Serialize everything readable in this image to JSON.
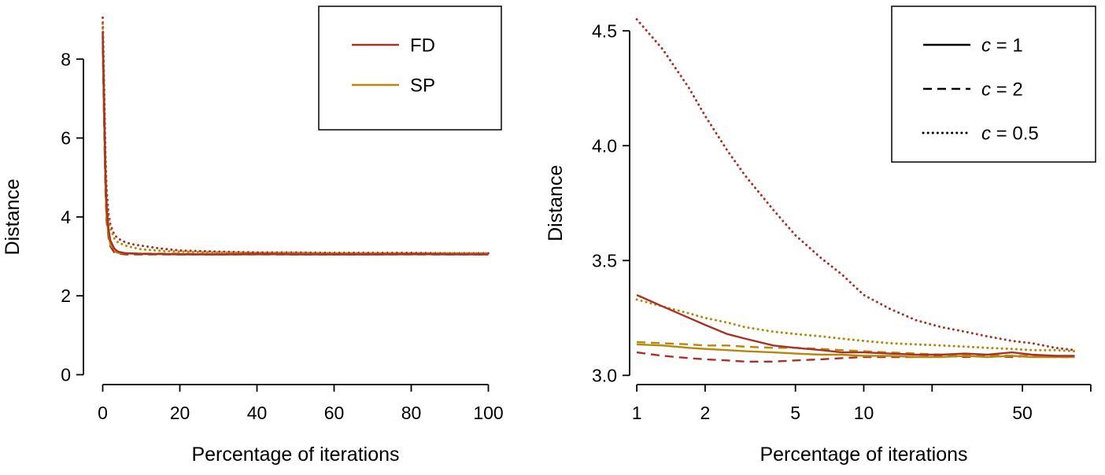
{
  "colors": {
    "axis": "#000000",
    "fd": "#a93226",
    "sp": "#b8860b",
    "legend_line_neutral": "#000000",
    "background": "#ffffff"
  },
  "chart_data": [
    {
      "panel_name": "left-panel",
      "type": "line",
      "title": "",
      "xlabel": "Percentage of iterations",
      "ylabel": "Distance",
      "xscale": "linear",
      "grid": false,
      "legend_position": "top-right",
      "xlim": [
        -5,
        105
      ],
      "ylim": [
        -0.25,
        9.3
      ],
      "xticks": [
        {
          "v": 0,
          "label": "0"
        },
        {
          "v": 20,
          "label": "20"
        },
        {
          "v": 40,
          "label": "40"
        },
        {
          "v": 60,
          "label": "60"
        },
        {
          "v": 80,
          "label": "80"
        },
        {
          "v": 100,
          "label": "100"
        }
      ],
      "yticks": [
        {
          "v": 0,
          "label": "0"
        },
        {
          "v": 2,
          "label": "2"
        },
        {
          "v": 4,
          "label": "4"
        },
        {
          "v": 6,
          "label": "6"
        },
        {
          "v": 8,
          "label": "8"
        }
      ],
      "legend": [
        {
          "text": "FD",
          "colorKey": "fd",
          "dash": "solid"
        },
        {
          "text": "SP",
          "colorKey": "sp",
          "dash": "solid"
        }
      ],
      "series": [
        {
          "name": "FD-dotted",
          "colorKey": "fd",
          "dash": "dotted",
          "x": [
            0,
            0.3,
            0.7,
            1,
            1.5,
            2,
            3,
            4,
            6,
            8,
            10,
            15,
            20,
            30,
            40,
            50,
            60,
            70,
            80,
            90,
            100
          ],
          "y": [
            9.05,
            7.6,
            5.6,
            4.7,
            4.1,
            3.8,
            3.55,
            3.45,
            3.35,
            3.3,
            3.27,
            3.2,
            3.15,
            3.12,
            3.1,
            3.1,
            3.09,
            3.09,
            3.09,
            3.08,
            3.08
          ]
        },
        {
          "name": "SP-dotted",
          "colorKey": "sp",
          "dash": "dotted",
          "x": [
            0,
            0.3,
            0.7,
            1,
            1.5,
            2,
            3,
            4,
            6,
            8,
            10,
            15,
            20,
            30,
            40,
            50,
            60,
            70,
            80,
            90,
            100
          ],
          "y": [
            8.9,
            7.4,
            5.4,
            4.5,
            3.95,
            3.7,
            3.45,
            3.35,
            3.27,
            3.22,
            3.18,
            3.14,
            3.12,
            3.1,
            3.09,
            3.09,
            3.08,
            3.08,
            3.08,
            3.08,
            3.08
          ]
        },
        {
          "name": "FD-dashed",
          "colorKey": "fd",
          "dash": "dashed",
          "x": [
            0,
            0.3,
            0.7,
            1,
            1.5,
            2,
            3,
            4,
            6,
            8,
            10,
            15,
            20,
            30,
            40,
            50,
            60,
            70,
            80,
            90,
            100
          ],
          "y": [
            8.3,
            6.6,
            4.7,
            3.9,
            3.5,
            3.25,
            3.1,
            3.07,
            3.05,
            3.05,
            3.05,
            3.05,
            3.05,
            3.05,
            3.05,
            3.05,
            3.05,
            3.05,
            3.05,
            3.05,
            3.05
          ]
        },
        {
          "name": "SP-dashed",
          "colorKey": "sp",
          "dash": "dashed",
          "x": [
            0,
            0.3,
            0.7,
            1,
            1.5,
            2,
            3,
            4,
            6,
            8,
            10,
            15,
            20,
            30,
            40,
            50,
            60,
            70,
            80,
            90,
            100
          ],
          "y": [
            8.45,
            6.8,
            4.85,
            4.0,
            3.55,
            3.3,
            3.12,
            3.09,
            3.08,
            3.08,
            3.07,
            3.07,
            3.07,
            3.06,
            3.06,
            3.06,
            3.06,
            3.06,
            3.06,
            3.06,
            3.06
          ]
        },
        {
          "name": "SP-solid",
          "colorKey": "sp",
          "dash": "solid",
          "x": [
            0,
            0.3,
            0.7,
            1,
            1.5,
            2,
            3,
            4,
            6,
            8,
            10,
            15,
            20,
            30,
            40,
            50,
            60,
            70,
            80,
            90,
            100
          ],
          "y": [
            8.6,
            7.0,
            5.0,
            4.1,
            3.6,
            3.35,
            3.18,
            3.1,
            3.08,
            3.07,
            3.07,
            3.06,
            3.06,
            3.05,
            3.05,
            3.06,
            3.05,
            3.05,
            3.05,
            3.06,
            3.05
          ]
        },
        {
          "name": "FD-solid",
          "colorKey": "fd",
          "dash": "solid",
          "x": [
            0,
            0.3,
            0.7,
            1,
            1.5,
            2,
            3,
            4,
            6,
            8,
            10,
            15,
            20,
            30,
            40,
            50,
            60,
            70,
            80,
            90,
            100
          ],
          "y": [
            8.7,
            7.2,
            5.2,
            4.3,
            3.7,
            3.4,
            3.2,
            3.12,
            3.08,
            3.07,
            3.06,
            3.06,
            3.05,
            3.05,
            3.06,
            3.05,
            3.05,
            3.05,
            3.06,
            3.05,
            3.05
          ]
        }
      ]
    },
    {
      "panel_name": "right-panel",
      "type": "line",
      "title": "",
      "xlabel": "Percentage of iterations",
      "ylabel": "Distance",
      "xscale": "log",
      "grid": false,
      "legend_position": "top-right",
      "xlim": [
        0.93,
        105
      ],
      "ylim": [
        2.96,
        4.6
      ],
      "xticks": [
        {
          "v": 1,
          "label": "1"
        },
        {
          "v": 2,
          "label": "2"
        },
        {
          "v": 5,
          "label": "5"
        },
        {
          "v": 10,
          "label": "10"
        },
        {
          "v": 20,
          "label": ""
        },
        {
          "v": 50,
          "label": "50"
        },
        {
          "v": 100,
          "label": ""
        }
      ],
      "yticks": [
        {
          "v": 3.0,
          "label": "3.0"
        },
        {
          "v": 3.5,
          "label": "3.5"
        },
        {
          "v": 4.0,
          "label": "4.0"
        },
        {
          "v": 4.5,
          "label": "4.5"
        }
      ],
      "legend": [
        {
          "var": "c",
          "text": " = 1",
          "dash": "solid"
        },
        {
          "var": "c",
          "text": " = 2",
          "dash": "dashed"
        },
        {
          "var": "c",
          "text": " = 0.5",
          "dash": "dotted"
        }
      ],
      "series": [
        {
          "name": "FD-c0.5-dotted",
          "colorKey": "fd",
          "dash": "dotted",
          "x": [
            1,
            1.3,
            1.7,
            2,
            2.5,
            3,
            4,
            5,
            6.5,
            8,
            10,
            13,
            17,
            22,
            28,
            35,
            45,
            55,
            70,
            85
          ],
          "y": [
            4.55,
            4.42,
            4.25,
            4.13,
            3.98,
            3.87,
            3.72,
            3.61,
            3.51,
            3.44,
            3.35,
            3.29,
            3.24,
            3.21,
            3.19,
            3.17,
            3.15,
            3.14,
            3.12,
            3.11
          ]
        },
        {
          "name": "SP-c0.5-dotted",
          "colorKey": "sp",
          "dash": "dotted",
          "x": [
            1,
            1.3,
            1.7,
            2,
            2.5,
            3,
            4,
            5,
            6.5,
            8,
            10,
            13,
            17,
            22,
            28,
            35,
            45,
            55,
            70,
            85
          ],
          "y": [
            3.33,
            3.3,
            3.27,
            3.25,
            3.23,
            3.21,
            3.19,
            3.18,
            3.17,
            3.16,
            3.15,
            3.14,
            3.135,
            3.13,
            3.125,
            3.12,
            3.115,
            3.11,
            3.11,
            3.105
          ]
        },
        {
          "name": "FD-c2-dashed",
          "colorKey": "fd",
          "dash": "dashed",
          "x": [
            1,
            1.3,
            1.7,
            2,
            2.5,
            3,
            4,
            5,
            6.5,
            8,
            10,
            13,
            17,
            22,
            28,
            35,
            45,
            55,
            70,
            85
          ],
          "y": [
            3.1,
            3.085,
            3.075,
            3.07,
            3.065,
            3.06,
            3.06,
            3.065,
            3.07,
            3.075,
            3.08,
            3.08,
            3.08,
            3.085,
            3.08,
            3.085,
            3.08,
            3.085,
            3.08,
            3.08
          ]
        },
        {
          "name": "SP-c2-dashed",
          "colorKey": "sp",
          "dash": "dashed",
          "x": [
            1,
            1.3,
            1.7,
            2,
            2.5,
            3,
            4,
            5,
            6.5,
            8,
            10,
            13,
            17,
            22,
            28,
            35,
            45,
            55,
            70,
            85
          ],
          "y": [
            3.145,
            3.14,
            3.135,
            3.13,
            3.13,
            3.125,
            3.12,
            3.12,
            3.115,
            3.11,
            3.105,
            3.1,
            3.095,
            3.09,
            3.09,
            3.09,
            3.085,
            3.085,
            3.085,
            3.08
          ]
        },
        {
          "name": "SP-c1-solid",
          "colorKey": "sp",
          "dash": "solid",
          "x": [
            1,
            1.3,
            1.7,
            2,
            2.5,
            3,
            4,
            5,
            6.5,
            8,
            10,
            13,
            17,
            22,
            28,
            35,
            45,
            55,
            70,
            85
          ],
          "y": [
            3.135,
            3.13,
            3.12,
            3.115,
            3.11,
            3.105,
            3.1,
            3.095,
            3.09,
            3.09,
            3.085,
            3.085,
            3.08,
            3.08,
            3.085,
            3.08,
            3.085,
            3.08,
            3.08,
            3.08
          ]
        },
        {
          "name": "FD-c1-solid",
          "colorKey": "fd",
          "dash": "solid",
          "x": [
            1,
            1.3,
            1.7,
            2,
            2.5,
            3,
            4,
            5,
            6.5,
            8,
            10,
            13,
            17,
            22,
            28,
            35,
            45,
            55,
            70,
            85
          ],
          "y": [
            3.35,
            3.3,
            3.25,
            3.22,
            3.18,
            3.16,
            3.13,
            3.12,
            3.11,
            3.1,
            3.1,
            3.095,
            3.09,
            3.09,
            3.095,
            3.09,
            3.1,
            3.09,
            3.085,
            3.085
          ]
        }
      ]
    }
  ]
}
